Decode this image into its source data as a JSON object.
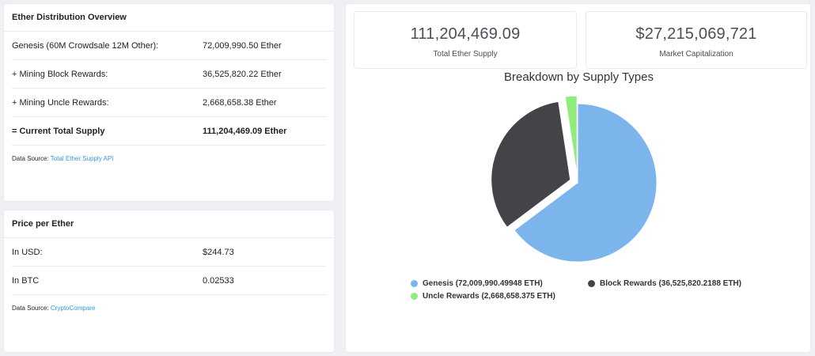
{
  "distribution": {
    "title": "Ether Distribution Overview",
    "rows": [
      {
        "label": "Genesis (60M Crowdsale 12M Other):",
        "value": "72,009,990.50 Ether"
      },
      {
        "label": "+ Mining Block Rewards:",
        "value": "36,525,820.22 Ether"
      },
      {
        "label": "+ Mining Uncle Rewards:",
        "value": "2,668,658.38 Ether"
      },
      {
        "label": "= Current Total Supply",
        "value": "111,204,469.09 Ether"
      }
    ],
    "source_label": "Data Source: ",
    "source_link": "Total Ether Supply API"
  },
  "price": {
    "title": "Price per Ether",
    "rows": [
      {
        "label": "In USD:",
        "value": "$244.73"
      },
      {
        "label": "In BTC",
        "value": "0.02533"
      }
    ],
    "source_label": "Data Source: ",
    "source_link": "CryptoCompare"
  },
  "stats": {
    "supply_value": "111,204,469.09",
    "supply_label": "Total Ether Supply",
    "cap_value": "$27,215,069,721",
    "cap_label": "Market Capitalization"
  },
  "chart_data": {
    "type": "pie",
    "title": "Breakdown by Supply Types",
    "slices": [
      {
        "name": "Genesis (72,009,990.49948 ETH)",
        "value": 72009990.49948,
        "color": "#7cb5ec"
      },
      {
        "name": "Block Rewards (36,525,820.2188 ETH)",
        "value": 36525820.2188,
        "color": "#434348"
      },
      {
        "name": "Uncle Rewards (2,668,658.375 ETH)",
        "value": 2668658.375,
        "color": "#90ed7d"
      }
    ],
    "legend": "bottom"
  }
}
